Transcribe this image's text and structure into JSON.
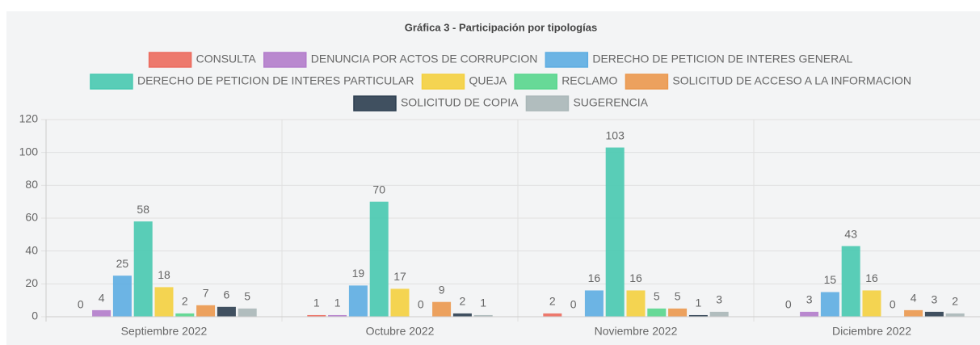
{
  "chart_data": {
    "type": "bar",
    "title": "Gráfica 3 - Participación por tipologías",
    "categories": [
      "Septiembre 2022",
      "Octubre 2022",
      "Noviembre 2022",
      "Diciembre 2022"
    ],
    "series": [
      {
        "name": "CONSULTA",
        "color": "#ec6b5e",
        "values": [
          0,
          1,
          2,
          0
        ]
      },
      {
        "name": "DENUNCIA POR ACTOS DE CORRUPCION",
        "color": "#b27ccb",
        "values": [
          4,
          1,
          0,
          3
        ]
      },
      {
        "name": "DERECHO DE PETICION DE INTERES GENERAL",
        "color": "#5dade2",
        "values": [
          25,
          19,
          16,
          15
        ]
      },
      {
        "name": "DERECHO DE PETICION DE INTERES PARTICULAR",
        "color": "#48c9b0",
        "values": [
          58,
          70,
          103,
          43
        ]
      },
      {
        "name": "QUEJA",
        "color": "#f4d03f",
        "values": [
          18,
          17,
          16,
          16
        ]
      },
      {
        "name": "RECLAMO",
        "color": "#58d68d",
        "values": [
          2,
          0,
          5,
          0
        ]
      },
      {
        "name": "SOLICITUD DE ACCESO A LA INFORMACION",
        "color": "#eb984e",
        "values": [
          7,
          9,
          5,
          4
        ]
      },
      {
        "name": "SOLICITUD DE COPIA",
        "color": "#2c3e50",
        "values": [
          6,
          2,
          1,
          3
        ]
      },
      {
        "name": "SUGERENCIA",
        "color": "#aab7b8",
        "values": [
          5,
          1,
          3,
          2
        ]
      }
    ],
    "ylim": [
      0,
      120
    ],
    "yticks": [
      0,
      20,
      40,
      60,
      80,
      100,
      120
    ],
    "grid": true,
    "legend": "top"
  }
}
